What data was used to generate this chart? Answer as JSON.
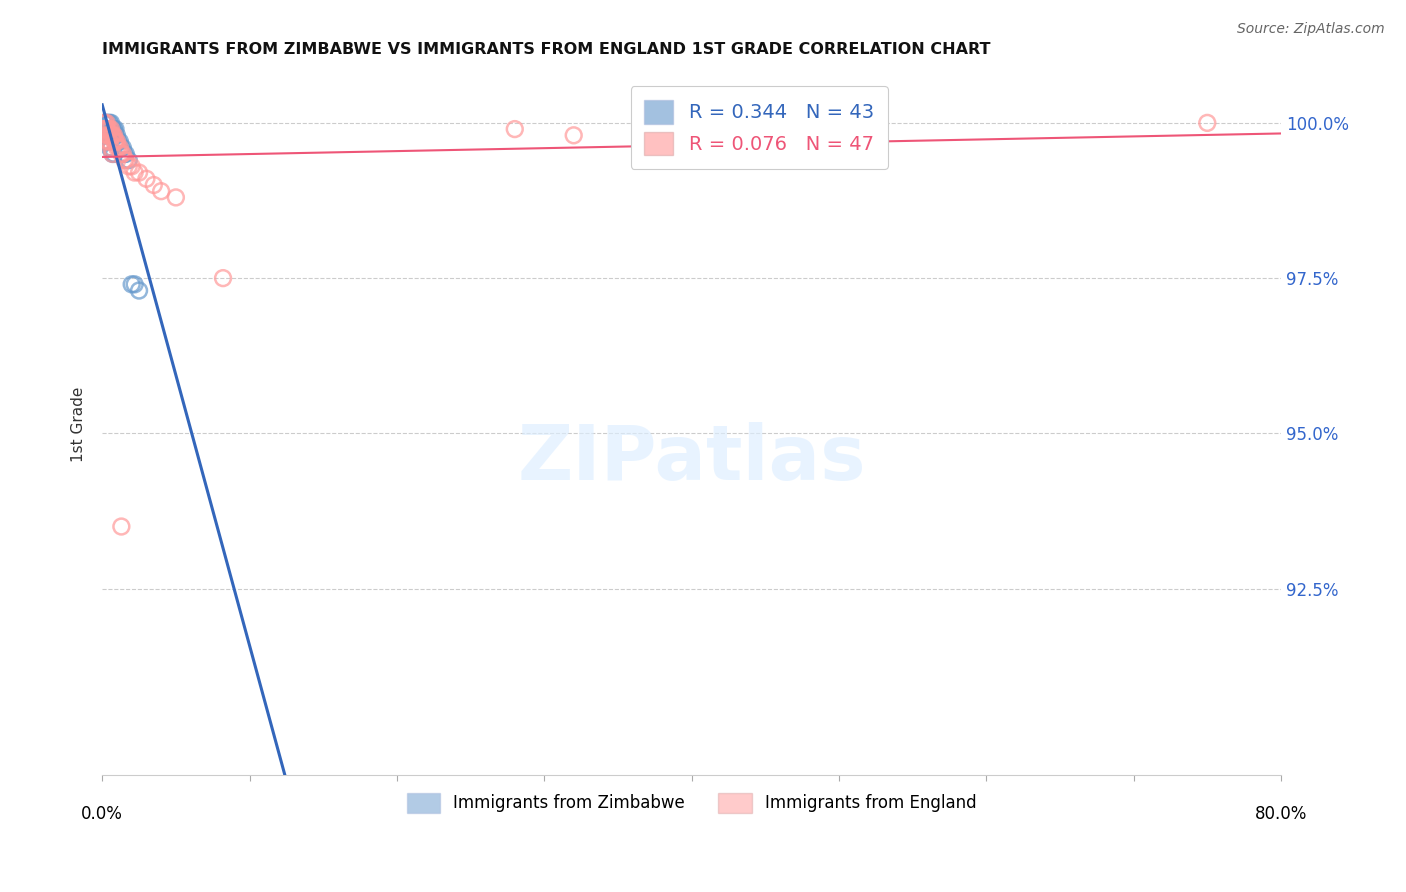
{
  "title": "IMMIGRANTS FROM ZIMBABWE VS IMMIGRANTS FROM ENGLAND 1ST GRADE CORRELATION CHART",
  "source": "Source: ZipAtlas.com",
  "ylabel": "1st Grade",
  "ytick_labels": [
    "100.0%",
    "97.5%",
    "95.0%",
    "92.5%"
  ],
  "ytick_values": [
    1.0,
    0.975,
    0.95,
    0.925
  ],
  "xlim": [
    0.0,
    0.8
  ],
  "ylim": [
    0.895,
    1.008
  ],
  "legend_labels": [
    "Immigrants from Zimbabwe",
    "Immigrants from England"
  ],
  "R_zim": 0.344,
  "N_zim": 43,
  "R_eng": 0.076,
  "N_eng": 47,
  "color_zim": "#6699CC",
  "color_eng": "#FF9999",
  "trendline_color_zim": "#3366BB",
  "trendline_color_eng": "#EE5577",
  "zim_x": [
    0.001,
    0.001,
    0.002,
    0.002,
    0.002,
    0.003,
    0.003,
    0.003,
    0.004,
    0.004,
    0.004,
    0.005,
    0.005,
    0.005,
    0.006,
    0.006,
    0.006,
    0.007,
    0.007,
    0.008,
    0.008,
    0.009,
    0.009,
    0.01,
    0.01,
    0.011,
    0.012,
    0.013,
    0.014,
    0.015,
    0.016,
    0.018,
    0.02,
    0.022,
    0.025,
    0.001,
    0.002,
    0.003,
    0.004,
    0.005,
    0.006,
    0.007,
    0.008
  ],
  "zim_y": [
    0.999,
    1.0,
    0.999,
    0.999,
    1.0,
    0.999,
    1.0,
    0.999,
    0.998,
    0.999,
    1.0,
    0.998,
    0.999,
    1.0,
    0.998,
    0.999,
    1.0,
    0.999,
    0.999,
    0.998,
    0.999,
    0.998,
    0.999,
    0.997,
    0.998,
    0.997,
    0.997,
    0.996,
    0.996,
    0.995,
    0.995,
    0.994,
    0.974,
    0.974,
    0.973,
    0.998,
    0.998,
    0.997,
    0.997,
    0.996,
    0.996,
    0.995,
    0.995
  ],
  "eng_x": [
    0.001,
    0.001,
    0.002,
    0.002,
    0.003,
    0.003,
    0.003,
    0.004,
    0.004,
    0.005,
    0.005,
    0.006,
    0.006,
    0.007,
    0.007,
    0.008,
    0.008,
    0.009,
    0.009,
    0.01,
    0.01,
    0.011,
    0.012,
    0.013,
    0.014,
    0.015,
    0.016,
    0.018,
    0.02,
    0.022,
    0.025,
    0.03,
    0.035,
    0.04,
    0.05,
    0.001,
    0.002,
    0.003,
    0.004,
    0.005,
    0.006,
    0.007,
    0.013,
    0.082,
    0.75,
    0.28,
    0.32
  ],
  "eng_y": [
    1.0,
    0.999,
    1.0,
    0.999,
    1.0,
    0.999,
    0.999,
    0.999,
    0.998,
    0.999,
    0.998,
    0.999,
    0.998,
    0.998,
    0.998,
    0.997,
    0.998,
    0.997,
    0.997,
    0.997,
    0.996,
    0.996,
    0.996,
    0.995,
    0.995,
    0.994,
    0.994,
    0.993,
    0.993,
    0.992,
    0.992,
    0.991,
    0.99,
    0.989,
    0.988,
    0.999,
    0.999,
    0.998,
    0.997,
    0.997,
    0.996,
    0.995,
    0.935,
    0.975,
    1.0,
    0.999,
    0.998
  ]
}
